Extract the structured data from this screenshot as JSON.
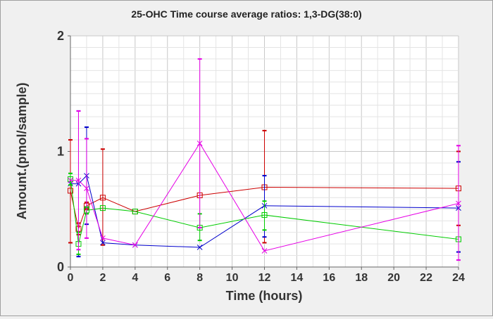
{
  "chart_data": {
    "type": "line",
    "title": "25-OHC Time course average ratios: 1,3-DG(38:0)",
    "xlabel": "Time (hours)",
    "ylabel": "Amount.(pmol/sample)",
    "xlim": [
      0,
      24
    ],
    "ylim": [
      0,
      2
    ],
    "xticks": [
      0,
      2,
      4,
      6,
      8,
      10,
      12,
      14,
      16,
      18,
      20,
      22,
      24
    ],
    "yticks": [
      0,
      1,
      2
    ],
    "grid": true,
    "series": [
      {
        "name": "red",
        "color": "#cc0000",
        "marker": "square",
        "points": [
          {
            "x": 0,
            "y": 0.66,
            "lo": 0.21,
            "hi": 1.1
          },
          {
            "x": 0.5,
            "y": 0.33,
            "lo": 0.28,
            "hi": 0.38
          },
          {
            "x": 1,
            "y": 0.53,
            "lo": 0.5,
            "hi": 0.56
          },
          {
            "x": 2,
            "y": 0.6,
            "lo": 0.19,
            "hi": 1.02
          },
          {
            "x": 4,
            "y": 0.48
          },
          {
            "x": 8,
            "y": 0.62
          },
          {
            "x": 12,
            "y": 0.69,
            "lo": 0.21,
            "hi": 1.18
          },
          {
            "x": 24,
            "y": 0.68,
            "lo": 0.36,
            "hi": 1.0
          }
        ]
      },
      {
        "name": "blue",
        "color": "#0000cc",
        "marker": "x",
        "points": [
          {
            "x": 0,
            "y": 0.72
          },
          {
            "x": 0.5,
            "y": 0.72,
            "lo": 0.09,
            "hi": 1.35
          },
          {
            "x": 1,
            "y": 0.79,
            "lo": 0.37,
            "hi": 1.21
          },
          {
            "x": 2,
            "y": 0.21
          },
          {
            "x": 4,
            "y": 0.19
          },
          {
            "x": 8,
            "y": 0.17
          },
          {
            "x": 12,
            "y": 0.53,
            "lo": 0.26,
            "hi": 0.79
          },
          {
            "x": 24,
            "y": 0.51,
            "lo": 0.13,
            "hi": 0.91
          }
        ]
      },
      {
        "name": "green",
        "color": "#00cc00",
        "marker": "square",
        "points": [
          {
            "x": 0,
            "y": 0.76,
            "lo": 0.71,
            "hi": 0.81
          },
          {
            "x": 0.5,
            "y": 0.2,
            "lo": 0.11,
            "hi": 0.3
          },
          {
            "x": 1,
            "y": 0.49,
            "lo": 0.46,
            "hi": 0.52
          },
          {
            "x": 2,
            "y": 0.51
          },
          {
            "x": 4,
            "y": 0.48
          },
          {
            "x": 8,
            "y": 0.34,
            "lo": 0.23,
            "hi": 0.46
          },
          {
            "x": 12,
            "y": 0.45,
            "lo": 0.32,
            "hi": 0.57
          },
          {
            "x": 24,
            "y": 0.24
          }
        ]
      },
      {
        "name": "magenta",
        "color": "#e600e6",
        "marker": "x",
        "points": [
          {
            "x": 0,
            "y": 0.75
          },
          {
            "x": 0.5,
            "y": 0.75,
            "lo": 0.15,
            "hi": 1.35
          },
          {
            "x": 1,
            "y": 0.68,
            "lo": 0.25,
            "hi": 1.11
          },
          {
            "x": 2,
            "y": 0.25
          },
          {
            "x": 4,
            "y": 0.19
          },
          {
            "x": 8,
            "y": 1.07,
            "lo": 0.34,
            "hi": 1.8
          },
          {
            "x": 12,
            "y": 0.14
          },
          {
            "x": 24,
            "y": 0.55,
            "lo": 0.06,
            "hi": 1.05
          }
        ]
      }
    ]
  }
}
